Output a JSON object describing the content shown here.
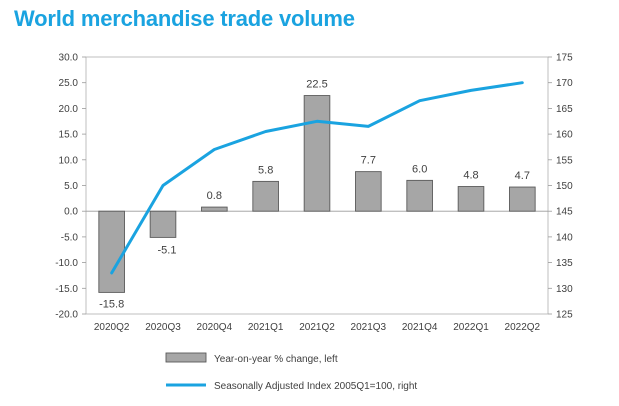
{
  "colors": {
    "title": "#1aa3e0",
    "bar_fill": "#a6a6a6",
    "bar_stroke": "#5a5a5a",
    "line": "#1aa3e0",
    "axis": "#9a9a9a",
    "frame": "#b0b0b0"
  },
  "chart_data": {
    "type": "bar+line",
    "title": "World merchandise trade volume",
    "categories": [
      "2020Q2",
      "2020Q3",
      "2020Q4",
      "2021Q1",
      "2021Q2",
      "2021Q3",
      "2021Q4",
      "2022Q1",
      "2022Q2"
    ],
    "series": [
      {
        "name": "Year-on-year % change, left",
        "type": "bar",
        "axis": "left",
        "values": [
          -15.8,
          -5.1,
          0.8,
          5.8,
          22.5,
          7.7,
          6.0,
          4.8,
          4.7
        ],
        "labels": [
          "-15.8",
          "-5.1",
          "0.8",
          "5.8",
          "22.5",
          "7.7",
          "6.0",
          "4.8",
          "4.7"
        ]
      },
      {
        "name": "Seasonally Adjusted Index 2005Q1=100, right",
        "type": "line",
        "axis": "right",
        "values": [
          133,
          150,
          157,
          160.5,
          162.5,
          161.5,
          166.5,
          168.5,
          170
        ]
      }
    ],
    "left_axis": {
      "min": -20,
      "max": 30,
      "step": 5,
      "tick_labels": [
        "-20.0",
        "-15.0",
        "-10.0",
        "-5.0",
        "0.0",
        "5.0",
        "10.0",
        "15.0",
        "20.0",
        "25.0",
        "30.0"
      ]
    },
    "right_axis": {
      "min": 125,
      "max": 175,
      "step": 5,
      "tick_labels": [
        "125",
        "130",
        "135",
        "140",
        "145",
        "150",
        "155",
        "160",
        "165",
        "170",
        "175"
      ]
    },
    "legend": {
      "position": "bottom",
      "items": [
        "Year-on-year % change, left",
        "Seasonally Adjusted Index 2005Q1=100, right"
      ]
    }
  }
}
